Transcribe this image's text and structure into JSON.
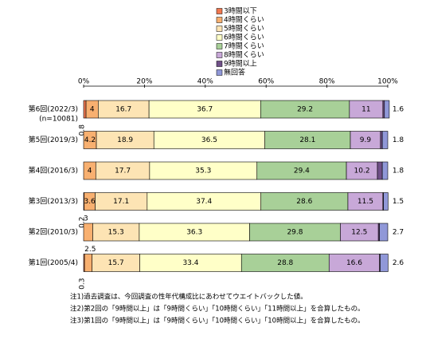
{
  "chart_data": {
    "type": "stacked-bar-horizontal",
    "categories": [
      "第6回(2022/3)",
      "第5回(2019/3)",
      "第4回(2016/3)",
      "第3回(2013/3)",
      "第2回(2010/3)",
      "第1回(2005/4)"
    ],
    "n_label": "(n=10081)",
    "xlim": [
      0,
      100
    ],
    "xticks": [
      {
        "value": 0,
        "label": "0%"
      },
      {
        "value": 20,
        "label": "20%"
      },
      {
        "value": 40,
        "label": "40%"
      },
      {
        "value": 60,
        "label": "60%"
      },
      {
        "value": 80,
        "label": "80%"
      },
      {
        "value": 100,
        "label": "100%"
      }
    ],
    "series": [
      {
        "name": "3時間以下",
        "color": "#f07850",
        "values": [
          0.8,
          null,
          null,
          0.2,
          null,
          0.3
        ]
      },
      {
        "name": "4時間くらい",
        "color": "#f8b070",
        "values": [
          4.0,
          4.2,
          4.0,
          3.6,
          3.0,
          2.5
        ]
      },
      {
        "name": "5時間くらい",
        "color": "#fde4b4",
        "values": [
          16.7,
          18.9,
          17.7,
          17.1,
          15.3,
          15.7
        ]
      },
      {
        "name": "6時間くらい",
        "color": "#ffffc8",
        "values": [
          36.7,
          36.5,
          35.3,
          37.4,
          36.3,
          33.4
        ]
      },
      {
        "name": "7時間くらい",
        "color": "#a8d098",
        "values": [
          29.2,
          28.1,
          29.4,
          28.6,
          29.8,
          28.8
        ]
      },
      {
        "name": "8時間くらい",
        "color": "#c8a8d8",
        "values": [
          11.0,
          9.9,
          10.2,
          11.5,
          12.5,
          16.6
        ]
      },
      {
        "name": "9時間以上",
        "color": "#705088",
        "values": [
          0.5,
          0.6,
          1.6,
          0.2,
          0.4,
          0.2
        ]
      },
      {
        "name": "無回答",
        "color": "#9098d8",
        "values": [
          1.6,
          1.8,
          1.8,
          1.5,
          2.7,
          2.6
        ]
      }
    ],
    "notes": [
      "注1)過去調査は、今回調査の性年代構成比にあわせてウエイトバックした値。",
      "注2)第2回の「9時間以上」は「9時間くらい」「10時間くらい」「11時間以上」を合算したもの。",
      "注3)第1回の「9時間以上」は「9時間くらい」「10時間くらい」「10時間以上」を合算したもの。"
    ]
  }
}
